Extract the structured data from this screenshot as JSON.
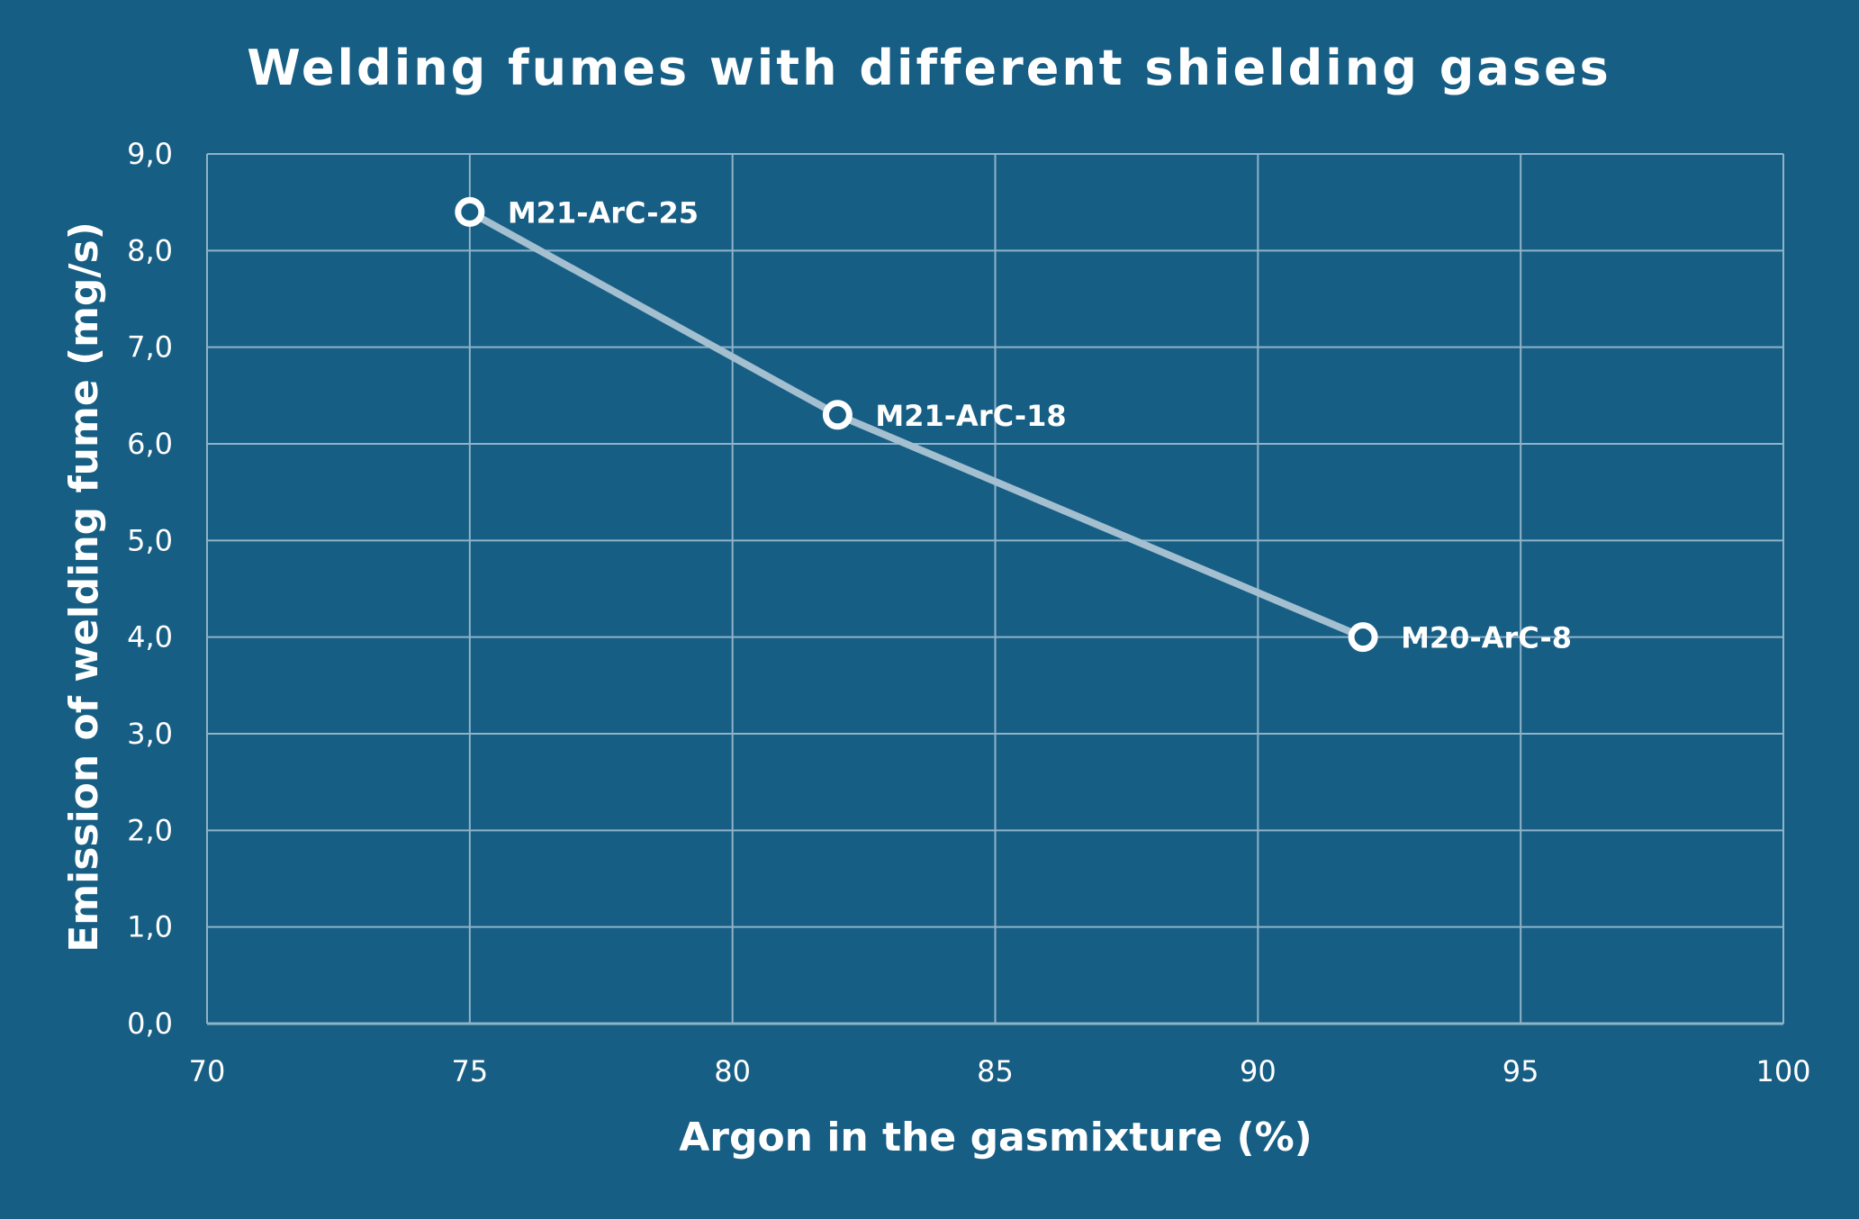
{
  "colors": {
    "background": "#175e84",
    "grid": "#8fb3c9",
    "line": "#a3bfd0",
    "marker": "#ffffff",
    "text": "#ffffff"
  },
  "chart_data": {
    "type": "line",
    "title": "Welding fumes with different shielding gases",
    "xlabel": "Argon in the gasmixture (%)",
    "ylabel": "Emission of welding fume (mg/s)",
    "xlim": [
      70,
      100
    ],
    "ylim": [
      0,
      9
    ],
    "x_ticks": [
      70,
      75,
      80,
      85,
      90,
      95,
      100
    ],
    "y_ticks": [
      "0,0",
      "1,0",
      "2,0",
      "3,0",
      "4,0",
      "5,0",
      "6,0",
      "7,0",
      "8,0",
      "9,0"
    ],
    "grid": true,
    "legend": "none",
    "series": [
      {
        "points": [
          {
            "x": 75,
            "y": 8.4,
            "label": "M21-ArC-25"
          },
          {
            "x": 82,
            "y": 6.3,
            "label": "M21-ArC-18"
          },
          {
            "x": 92,
            "y": 4.0,
            "label": "M20-ArC-8"
          }
        ]
      }
    ]
  }
}
